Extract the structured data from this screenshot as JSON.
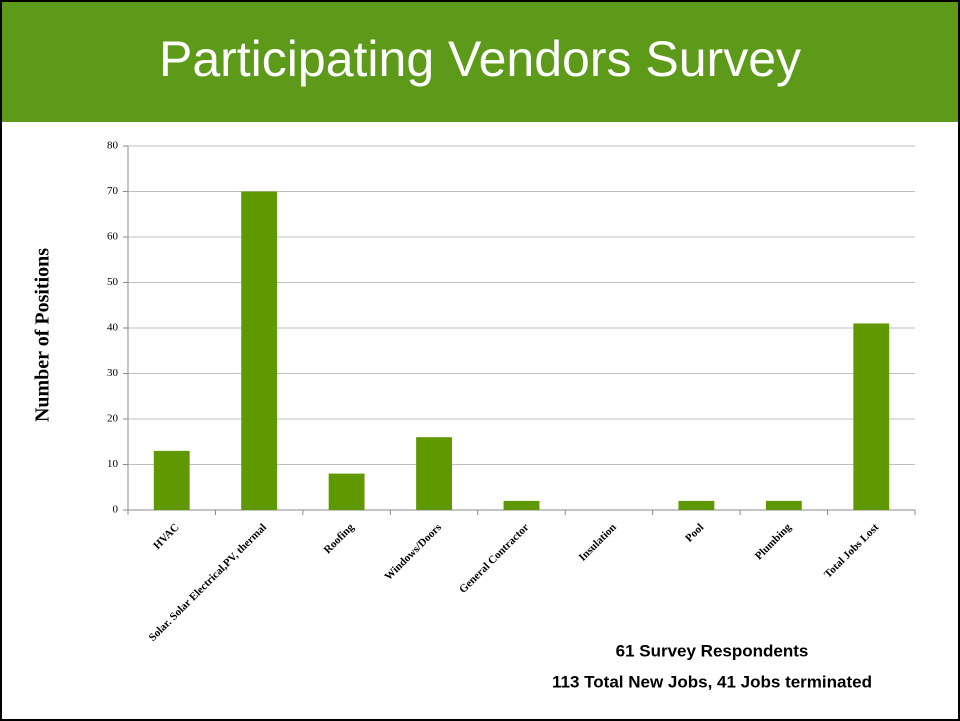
{
  "chart_data": {
    "type": "bar",
    "title": "Participating Vendors Survey",
    "ylabel": "Number of Positions",
    "categories": [
      "HVAC",
      "Solar. Solar Electrical,PV, thermal",
      "Roofing",
      "Windows/Doors",
      "General Contractor",
      "Insulation",
      "Pool",
      "Plumbing",
      "Total Jobs Lost"
    ],
    "values": [
      13,
      70,
      8,
      16,
      2,
      0,
      2,
      2,
      41
    ],
    "color": "#5f9800",
    "ylim": [
      0,
      80
    ],
    "yticks": [
      0,
      10,
      20,
      30,
      40,
      50,
      60,
      70,
      80
    ],
    "grid": true,
    "annotations": [
      "61 Survey Respondents",
      "113 Total New Jobs, 41 Jobs terminated"
    ]
  }
}
